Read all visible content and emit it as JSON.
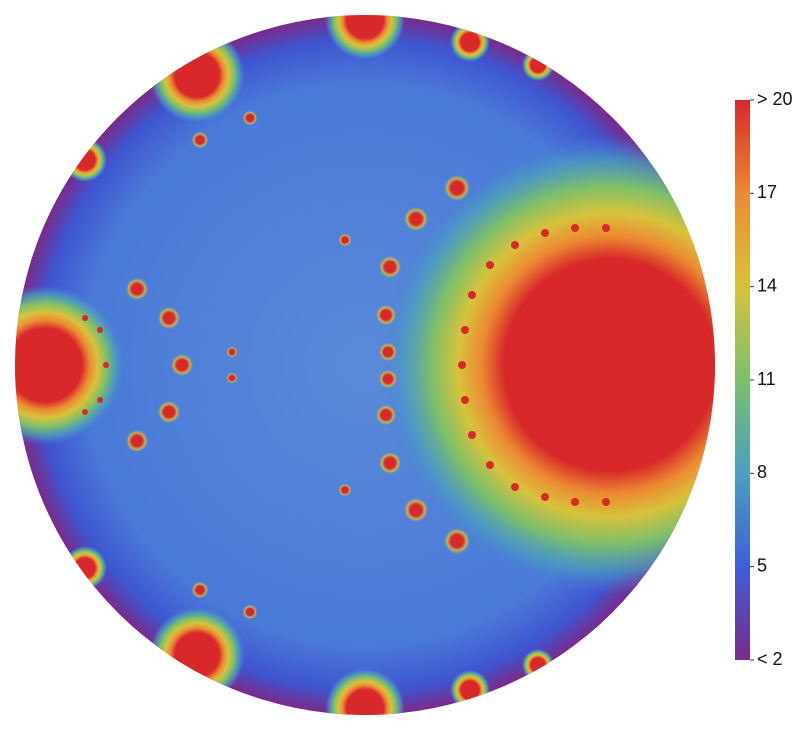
{
  "chart_data": {
    "type": "heatmap",
    "colorbar": {
      "clim": [
        2,
        20
      ],
      "ticks": [
        {
          "value": 2,
          "label": "< 2"
        },
        5,
        8,
        11,
        14,
        17,
        {
          "value": 20,
          "label": "> 20"
        }
      ],
      "colors": [
        "#7a2a8a",
        "#3f5fd6",
        "#4a9fc0",
        "#7cbf6a",
        "#d8c23c",
        "#ec8a32",
        "#d8282a"
      ]
    }
  }
}
